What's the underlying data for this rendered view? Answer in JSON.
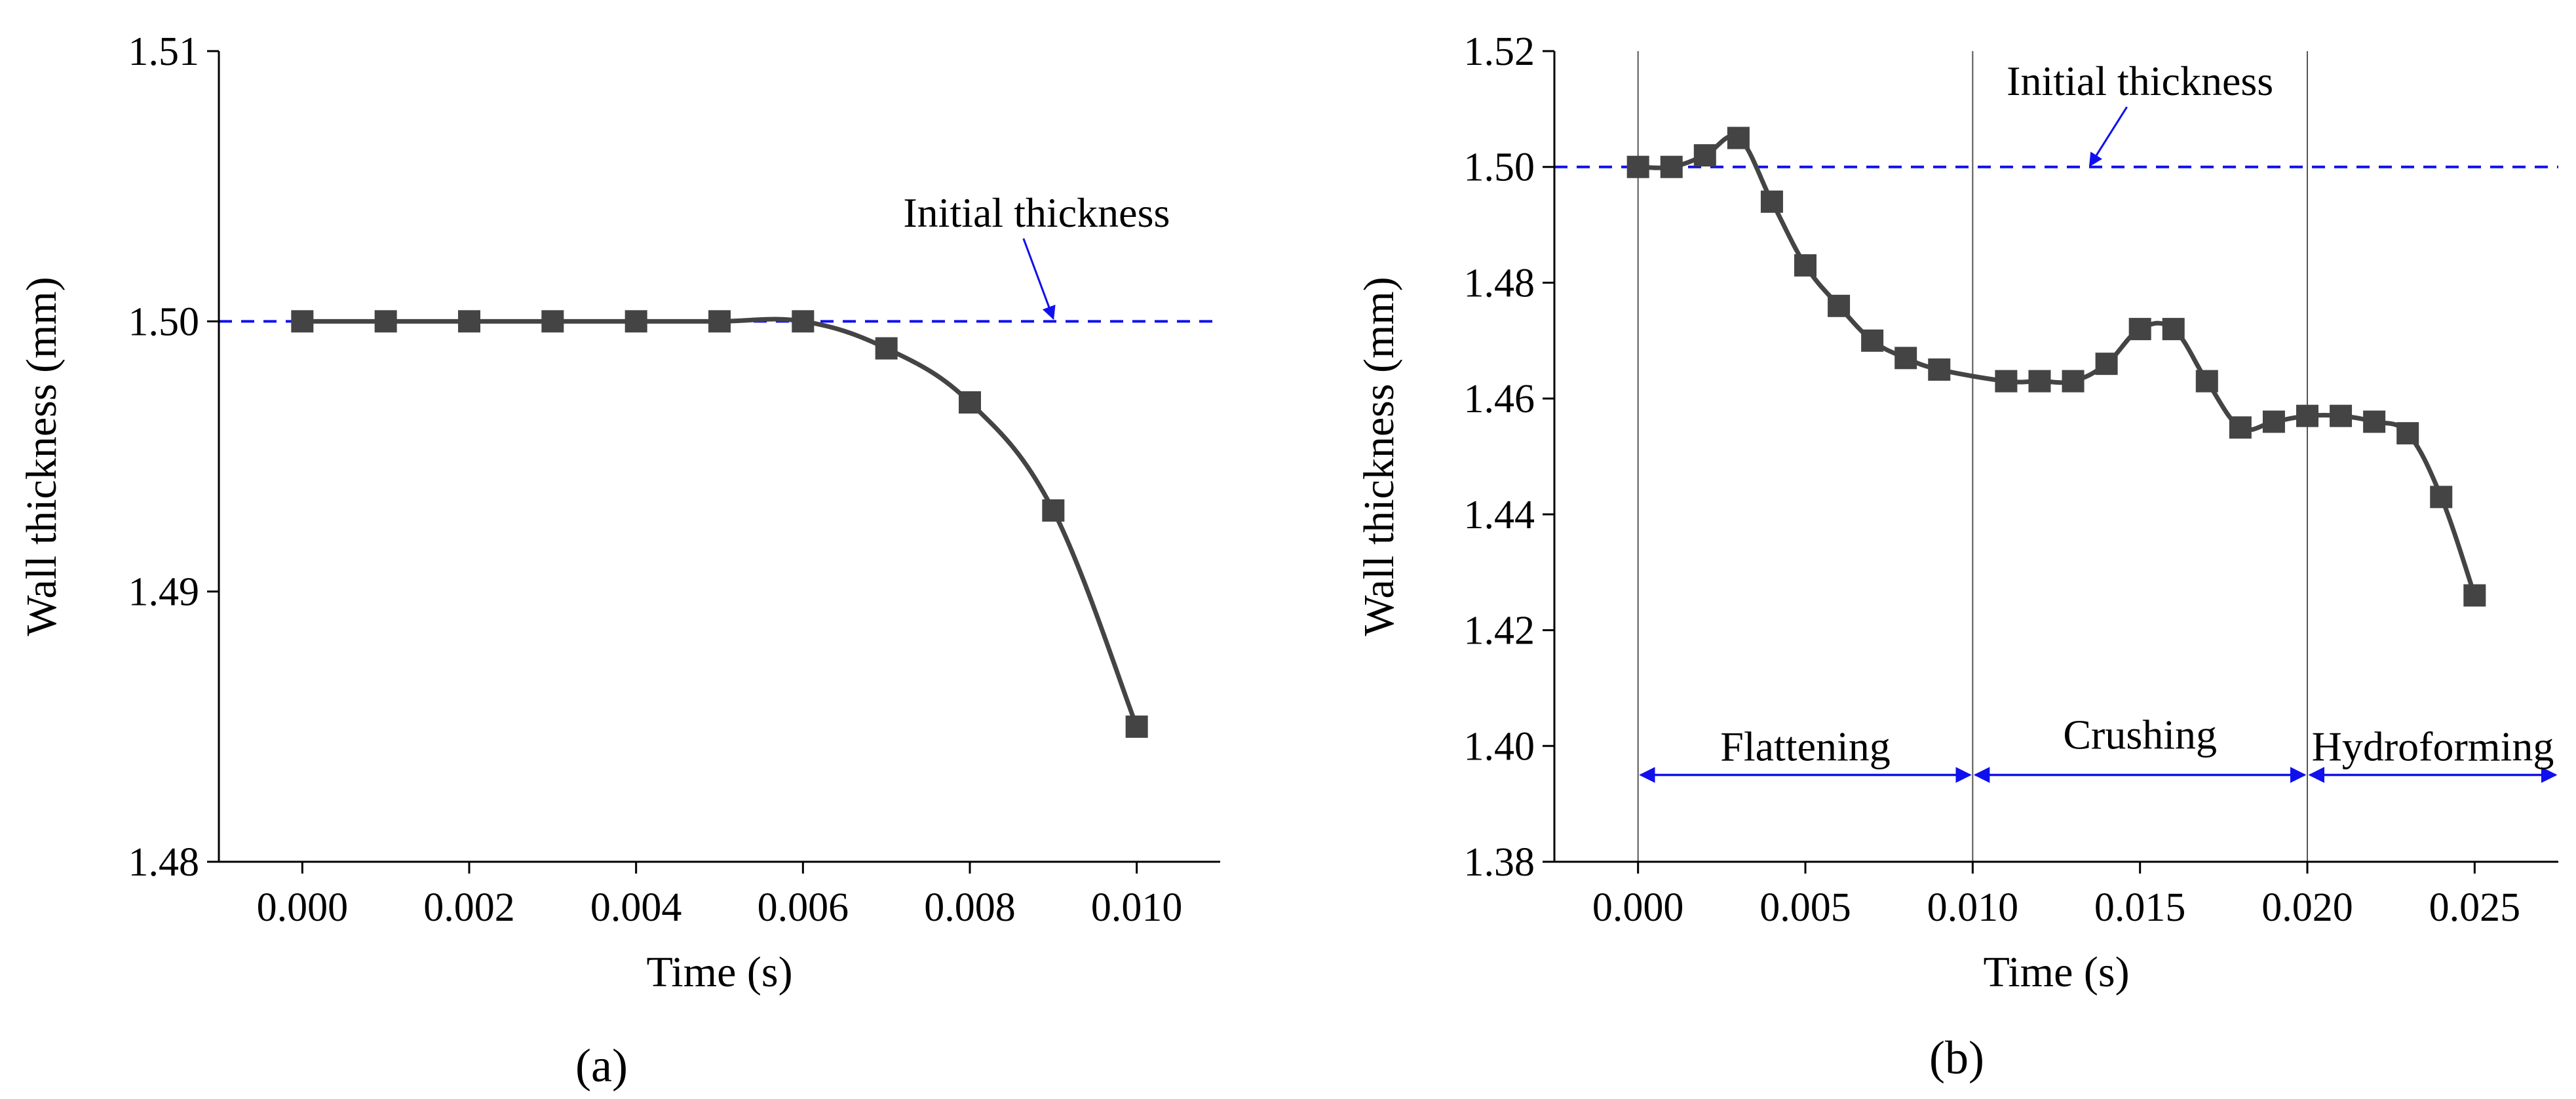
{
  "figure": {
    "panel_labels": [
      "(a)",
      "(b)"
    ]
  },
  "colors": {
    "series": "#444444",
    "reference": "#1010ee",
    "axes": "#000000",
    "phase_lines": "#555555"
  },
  "chart_data": [
    {
      "type": "line",
      "panel": "(a)",
      "xlabel": "Time (s)",
      "ylabel": "Wall thickness (mm)",
      "xlim": [
        -0.001,
        0.011
      ],
      "ylim": [
        1.48,
        1.51
      ],
      "xticks": [
        "0.000",
        "0.002",
        "0.004",
        "0.006",
        "0.008",
        "0.010"
      ],
      "xtick_values": [
        0.0,
        0.002,
        0.004,
        0.006,
        0.008,
        0.01
      ],
      "yticks": [
        "1.48",
        "1.49",
        "1.50",
        "1.51"
      ],
      "ytick_values": [
        1.48,
        1.49,
        1.5,
        1.51
      ],
      "grid": false,
      "marker": "square",
      "series": [
        {
          "x": [
            0.0,
            0.001,
            0.002,
            0.003,
            0.004,
            0.005,
            0.006,
            0.007,
            0.008,
            0.009,
            0.01
          ],
          "values": [
            1.5,
            1.5,
            1.5,
            1.5,
            1.5,
            1.5,
            1.5,
            1.499,
            1.497,
            1.493,
            1.485
          ]
        }
      ],
      "reference_line": {
        "y": 1.5,
        "label": "Initial thickness",
        "label_at": [
          0.0088,
          1.5035
        ],
        "arrow_to": [
          0.009,
          1.5001
        ]
      }
    },
    {
      "type": "line",
      "panel": "(b)",
      "xlabel": "Time (s)",
      "ylabel": "Wall thickness (mm)",
      "xlim": [
        -0.0025,
        0.0275
      ],
      "ylim": [
        1.38,
        1.52
      ],
      "xticks": [
        "0.000",
        "0.005",
        "0.010",
        "0.015",
        "0.020",
        "0.025"
      ],
      "xtick_values": [
        0.0,
        0.005,
        0.01,
        0.015,
        0.02,
        0.025
      ],
      "yticks": [
        "1.38",
        "1.40",
        "1.42",
        "1.44",
        "1.46",
        "1.48",
        "1.50",
        "1.52"
      ],
      "ytick_values": [
        1.38,
        1.4,
        1.42,
        1.44,
        1.46,
        1.48,
        1.5,
        1.52
      ],
      "grid": false,
      "marker": "square",
      "series": [
        {
          "x": [
            0.0,
            0.001,
            0.002,
            0.003,
            0.004,
            0.005,
            0.006,
            0.007,
            0.008,
            0.009,
            0.011,
            0.012,
            0.013,
            0.014,
            0.015,
            0.016,
            0.017,
            0.018,
            0.019,
            0.02,
            0.021,
            0.022,
            0.023,
            0.024,
            0.025
          ],
          "values": [
            1.5,
            1.5,
            1.502,
            1.505,
            1.494,
            1.483,
            1.476,
            1.47,
            1.467,
            1.465,
            1.463,
            1.463,
            1.463,
            1.466,
            1.472,
            1.472,
            1.463,
            1.455,
            1.456,
            1.457,
            1.457,
            1.456,
            1.454,
            1.443,
            1.426
          ]
        }
      ],
      "reference_line": {
        "y": 1.5,
        "label": "Initial thickness",
        "label_at": [
          0.015,
          1.5124
        ],
        "arrow_to": [
          0.0135,
          1.5002
        ]
      },
      "phase_boundaries": [
        0.0,
        0.01,
        0.02
      ],
      "phases": [
        {
          "label": "Flattening",
          "from": 0.0,
          "to": 0.01
        },
        {
          "label": "Crushing",
          "from": 0.01,
          "to": 0.02
        },
        {
          "label": "Hydroforming",
          "from": 0.02,
          "to": 0.0275
        }
      ],
      "phase_arrow_y": 1.395,
      "phase_label_y": [
        1.3975,
        1.3995,
        1.3975
      ]
    }
  ]
}
